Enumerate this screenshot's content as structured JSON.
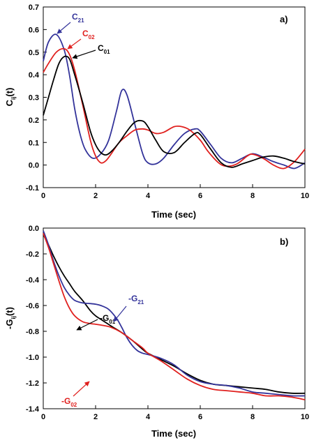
{
  "chart_data": [
    {
      "type": "line",
      "panel_label": "a)",
      "xlabel": "Time (sec)",
      "ylabel_main": "C",
      "ylabel_sub": "ij",
      "ylabel_tail": "(t)",
      "xlim": [
        0,
        10
      ],
      "ylim": [
        -0.1,
        0.7
      ],
      "xticks": [
        "0",
        "2",
        "4",
        "6",
        "8",
        "10"
      ],
      "yticks": [
        "-0.1",
        "0.0",
        "0.1",
        "0.2",
        "0.3",
        "0.4",
        "0.5",
        "0.6",
        "0.7"
      ],
      "grid": false,
      "series": [
        {
          "name": "C21",
          "label_main": "C",
          "label_sub": "21",
          "color": "#33339a",
          "x": [
            0,
            0.2,
            0.5,
            0.8,
            1.0,
            1.2,
            1.4,
            1.6,
            1.9,
            2.2,
            2.5,
            2.8,
            3.0,
            3.2,
            3.5,
            3.8,
            4.0,
            4.3,
            4.6,
            5.0,
            5.4,
            5.8,
            6.0,
            6.4,
            6.8,
            7.2,
            7.6,
            8.0,
            8.4,
            8.8,
            9.2,
            9.6,
            10.0
          ],
          "y": [
            0.46,
            0.545,
            0.578,
            0.51,
            0.4,
            0.25,
            0.14,
            0.07,
            0.03,
            0.05,
            0.11,
            0.24,
            0.33,
            0.31,
            0.18,
            0.05,
            0.01,
            0.005,
            0.03,
            0.09,
            0.14,
            0.16,
            0.15,
            0.09,
            0.03,
            0.01,
            0.03,
            0.05,
            0.035,
            0.015,
            0.0,
            -0.015,
            0.01
          ]
        },
        {
          "name": "C02",
          "label_main": "C",
          "label_sub": "02",
          "color": "#e0201e",
          "x": [
            0,
            0.2,
            0.5,
            0.8,
            1.0,
            1.2,
            1.5,
            1.8,
            2.0,
            2.2,
            2.4,
            2.6,
            2.9,
            3.2,
            3.5,
            3.8,
            4.0,
            4.3,
            4.6,
            5.0,
            5.3,
            5.6,
            6.0,
            6.3,
            6.7,
            7.0,
            7.4,
            7.8,
            8.0,
            8.4,
            8.8,
            9.2,
            9.6,
            10.0
          ],
          "y": [
            0.41,
            0.45,
            0.5,
            0.515,
            0.49,
            0.42,
            0.27,
            0.11,
            0.04,
            0.01,
            0.02,
            0.05,
            0.1,
            0.13,
            0.155,
            0.16,
            0.155,
            0.14,
            0.145,
            0.17,
            0.17,
            0.155,
            0.11,
            0.06,
            0.01,
            -0.005,
            0.005,
            0.04,
            0.048,
            0.03,
            0.0,
            -0.015,
            0.015,
            0.07
          ]
        },
        {
          "name": "C01",
          "label_main": "C",
          "label_sub": "01",
          "color": "#000000",
          "x": [
            0,
            0.2,
            0.4,
            0.6,
            0.8,
            1.0,
            1.2,
            1.5,
            1.8,
            2.0,
            2.2,
            2.4,
            2.6,
            2.9,
            3.2,
            3.5,
            3.8,
            4.0,
            4.3,
            4.6,
            5.0,
            5.4,
            5.8,
            6.0,
            6.4,
            6.8,
            7.2,
            7.6,
            8.0,
            8.4,
            8.8,
            9.2,
            9.6,
            10.0
          ],
          "y": [
            0.22,
            0.3,
            0.38,
            0.45,
            0.48,
            0.47,
            0.4,
            0.28,
            0.15,
            0.09,
            0.055,
            0.045,
            0.06,
            0.1,
            0.15,
            0.19,
            0.195,
            0.17,
            0.11,
            0.06,
            0.055,
            0.1,
            0.14,
            0.135,
            0.07,
            0.01,
            -0.01,
            0.005,
            0.02,
            0.035,
            0.04,
            0.03,
            0.015,
            0.005
          ]
        }
      ]
    },
    {
      "type": "line",
      "panel_label": "b)",
      "xlabel": "Time (sec)",
      "ylabel_main": "-G",
      "ylabel_sub": "ij",
      "ylabel_tail": "(t)",
      "xlim": [
        0,
        10
      ],
      "ylim": [
        -1.4,
        0.0
      ],
      "xticks": [
        "0",
        "2",
        "4",
        "6",
        "8",
        "10"
      ],
      "yticks": [
        "0.0",
        "-0.2",
        "-0.4",
        "-0.6",
        "-0.8",
        "-1.0",
        "-1.2",
        "-1.4"
      ],
      "grid": false,
      "series": [
        {
          "name": "-G01",
          "label_main": "-G",
          "label_sub": "01",
          "color": "#000000",
          "x": [
            0,
            0.2,
            0.4,
            0.6,
            0.8,
            1.0,
            1.2,
            1.5,
            1.8,
            2.0,
            2.3,
            2.6,
            3.0,
            3.4,
            3.8,
            4.0,
            4.5,
            5.0,
            5.5,
            6.0,
            6.5,
            7.0,
            7.5,
            8.0,
            8.5,
            9.0,
            9.5,
            10.0
          ],
          "y": [
            -0.05,
            -0.13,
            -0.22,
            -0.3,
            -0.37,
            -0.43,
            -0.49,
            -0.56,
            -0.64,
            -0.68,
            -0.72,
            -0.76,
            -0.81,
            -0.87,
            -0.94,
            -0.97,
            -1.02,
            -1.07,
            -1.13,
            -1.18,
            -1.21,
            -1.22,
            -1.23,
            -1.24,
            -1.25,
            -1.27,
            -1.28,
            -1.28
          ]
        },
        {
          "name": "-G21",
          "label_main": "-G",
          "label_sub": "21",
          "color": "#33339a",
          "x": [
            0,
            0.2,
            0.4,
            0.6,
            0.8,
            1.0,
            1.2,
            1.5,
            1.8,
            2.0,
            2.2,
            2.5,
            2.8,
            3.0,
            3.2,
            3.4,
            3.6,
            3.8,
            4.0,
            4.5,
            5.0,
            5.5,
            6.0,
            6.5,
            7.0,
            7.5,
            8.0,
            8.5,
            9.0,
            9.5,
            10.0
          ],
          "y": [
            -0.02,
            -0.13,
            -0.26,
            -0.37,
            -0.46,
            -0.52,
            -0.56,
            -0.58,
            -0.585,
            -0.59,
            -0.6,
            -0.63,
            -0.7,
            -0.77,
            -0.85,
            -0.91,
            -0.95,
            -0.97,
            -0.98,
            -1.01,
            -1.06,
            -1.14,
            -1.19,
            -1.21,
            -1.22,
            -1.24,
            -1.27,
            -1.28,
            -1.29,
            -1.3,
            -1.3
          ]
        },
        {
          "name": "-G02",
          "label_main": "-G",
          "label_sub": "02",
          "color": "#e0201e",
          "x": [
            0,
            0.2,
            0.4,
            0.6,
            0.8,
            1.0,
            1.2,
            1.5,
            1.8,
            2.0,
            2.3,
            2.6,
            3.0,
            3.4,
            3.8,
            4.0,
            4.5,
            5.0,
            5.5,
            6.0,
            6.5,
            7.0,
            7.5,
            8.0,
            8.5,
            9.0,
            9.5,
            10.0
          ],
          "y": [
            -0.04,
            -0.15,
            -0.28,
            -0.41,
            -0.53,
            -0.62,
            -0.68,
            -0.725,
            -0.74,
            -0.745,
            -0.755,
            -0.77,
            -0.81,
            -0.87,
            -0.93,
            -0.97,
            -1.03,
            -1.1,
            -1.17,
            -1.22,
            -1.25,
            -1.26,
            -1.27,
            -1.28,
            -1.3,
            -1.3,
            -1.31,
            -1.33
          ]
        }
      ]
    }
  ]
}
